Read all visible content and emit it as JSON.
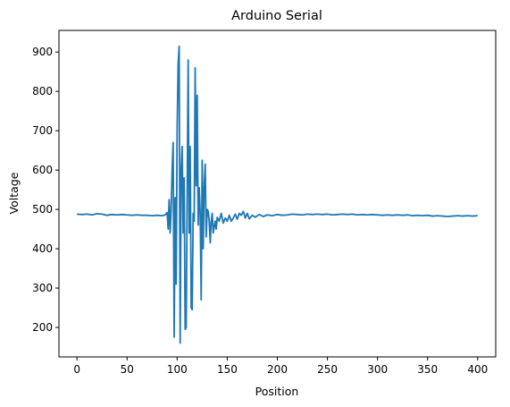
{
  "chart_data": {
    "type": "line",
    "title": "Arduino Serial",
    "xlabel": "Position",
    "ylabel": "Voltage",
    "xlim": [
      -18,
      418
    ],
    "ylim": [
      125,
      955
    ],
    "x_ticks": [
      0,
      50,
      100,
      150,
      200,
      250,
      300,
      350,
      400
    ],
    "y_ticks": [
      200,
      300,
      400,
      500,
      600,
      700,
      800,
      900
    ],
    "grid": false,
    "legend": "none",
    "series": [
      {
        "color": "#1f77b4",
        "points": [
          [
            0,
            488
          ],
          [
            5,
            487
          ],
          [
            10,
            488
          ],
          [
            15,
            486
          ],
          [
            20,
            489
          ],
          [
            25,
            488
          ],
          [
            30,
            485
          ],
          [
            35,
            487
          ],
          [
            40,
            486
          ],
          [
            45,
            487
          ],
          [
            50,
            486
          ],
          [
            55,
            485
          ],
          [
            60,
            486
          ],
          [
            65,
            485
          ],
          [
            70,
            485
          ],
          [
            75,
            484
          ],
          [
            80,
            485
          ],
          [
            85,
            484
          ],
          [
            88,
            486
          ],
          [
            90,
            492
          ],
          [
            91,
            450
          ],
          [
            92,
            525
          ],
          [
            93,
            440
          ],
          [
            94,
            500
          ],
          [
            95,
            600
          ],
          [
            96,
            670
          ],
          [
            97,
            175
          ],
          [
            98,
            530
          ],
          [
            99,
            310
          ],
          [
            100,
            700
          ],
          [
            101,
            870
          ],
          [
            102,
            915
          ],
          [
            103,
            160
          ],
          [
            104,
            600
          ],
          [
            105,
            660
          ],
          [
            106,
            440
          ],
          [
            107,
            580
          ],
          [
            108,
            195
          ],
          [
            109,
            200
          ],
          [
            110,
            540
          ],
          [
            111,
            880
          ],
          [
            112,
            440
          ],
          [
            113,
            660
          ],
          [
            114,
            250
          ],
          [
            115,
            245
          ],
          [
            116,
            490
          ],
          [
            117,
            470
          ],
          [
            118,
            860
          ],
          [
            119,
            560
          ],
          [
            120,
            790
          ],
          [
            121,
            460
          ],
          [
            122,
            555
          ],
          [
            123,
            490
          ],
          [
            124,
            270
          ],
          [
            125,
            625
          ],
          [
            126,
            400
          ],
          [
            127,
            560
          ],
          [
            128,
            615
          ],
          [
            129,
            430
          ],
          [
            130,
            500
          ],
          [
            131,
            495
          ],
          [
            132,
            470
          ],
          [
            133,
            415
          ],
          [
            134,
            470
          ],
          [
            135,
            490
          ],
          [
            136,
            440
          ],
          [
            137,
            455
          ],
          [
            138,
            470
          ],
          [
            139,
            450
          ],
          [
            140,
            480
          ],
          [
            142,
            470
          ],
          [
            144,
            490
          ],
          [
            146,
            465
          ],
          [
            148,
            478
          ],
          [
            150,
            470
          ],
          [
            152,
            485
          ],
          [
            154,
            470
          ],
          [
            156,
            478
          ],
          [
            158,
            488
          ],
          [
            160,
            475
          ],
          [
            162,
            490
          ],
          [
            164,
            485
          ],
          [
            166,
            495
          ],
          [
            168,
            478
          ],
          [
            170,
            490
          ],
          [
            172,
            476
          ],
          [
            175,
            485
          ],
          [
            178,
            480
          ],
          [
            182,
            487
          ],
          [
            186,
            482
          ],
          [
            190,
            486
          ],
          [
            195,
            484
          ],
          [
            200,
            487
          ],
          [
            205,
            485
          ],
          [
            210,
            486
          ],
          [
            215,
            488
          ],
          [
            220,
            487
          ],
          [
            225,
            486
          ],
          [
            230,
            488
          ],
          [
            235,
            487
          ],
          [
            240,
            488
          ],
          [
            245,
            487
          ],
          [
            250,
            488
          ],
          [
            255,
            486
          ],
          [
            260,
            487
          ],
          [
            265,
            488
          ],
          [
            270,
            487
          ],
          [
            275,
            488
          ],
          [
            280,
            486
          ],
          [
            285,
            487
          ],
          [
            290,
            486
          ],
          [
            295,
            487
          ],
          [
            300,
            486
          ],
          [
            305,
            485
          ],
          [
            310,
            486
          ],
          [
            315,
            485
          ],
          [
            320,
            486
          ],
          [
            325,
            485
          ],
          [
            330,
            486
          ],
          [
            335,
            484
          ],
          [
            340,
            485
          ],
          [
            345,
            484
          ],
          [
            350,
            485
          ],
          [
            355,
            483
          ],
          [
            360,
            484
          ],
          [
            365,
            483
          ],
          [
            370,
            482
          ],
          [
            375,
            483
          ],
          [
            380,
            484
          ],
          [
            385,
            483
          ],
          [
            390,
            484
          ],
          [
            395,
            483
          ],
          [
            400,
            484
          ]
        ]
      }
    ]
  }
}
